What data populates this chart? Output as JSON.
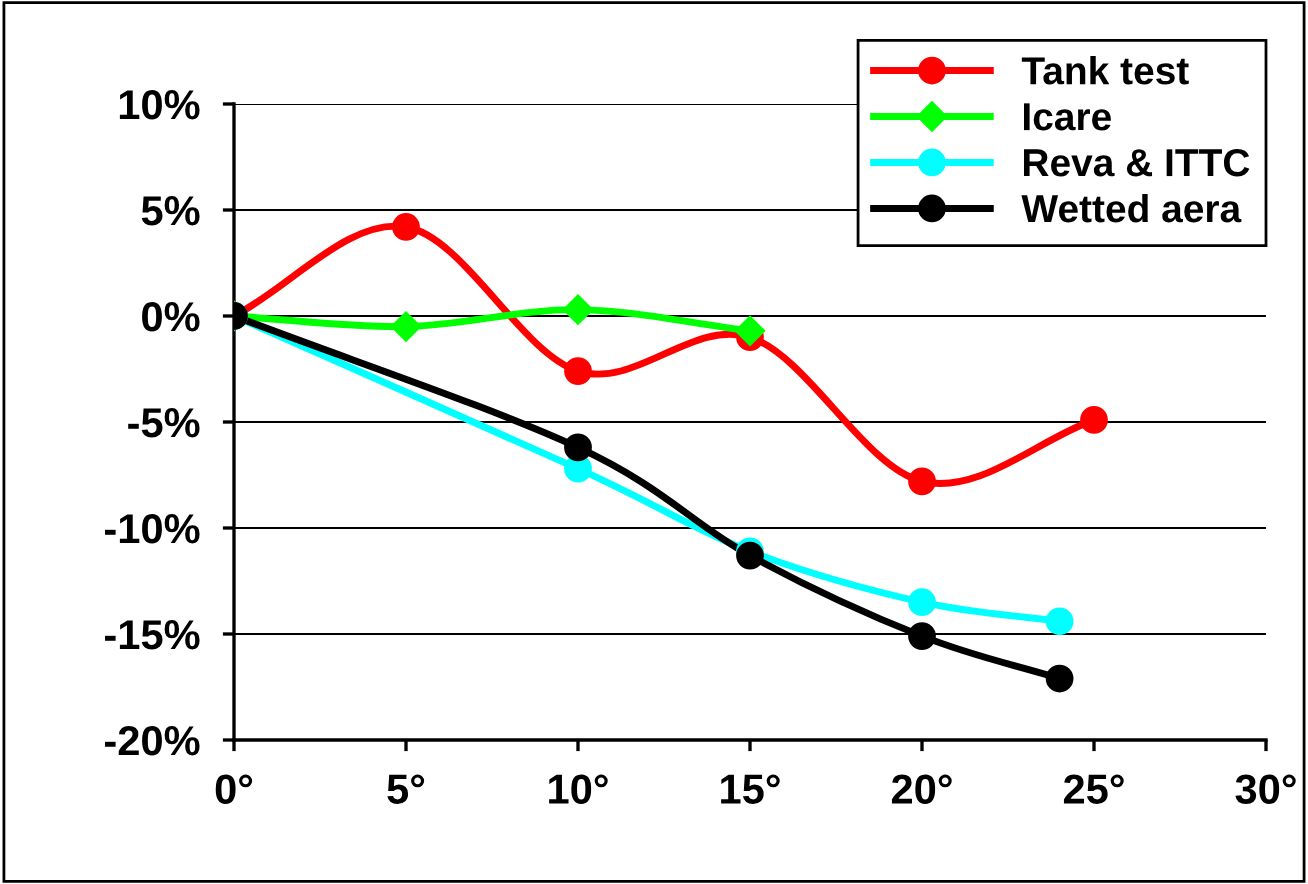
{
  "chart_data": {
    "type": "line",
    "series": [
      {
        "name": "Tank test",
        "color": "#ff0000",
        "marker": "circle",
        "x": [
          0,
          5,
          10,
          15,
          20,
          25
        ],
        "values": [
          0,
          4.2,
          -2.6,
          -1.0,
          -7.8,
          -4.9
        ]
      },
      {
        "name": "Icare",
        "color": "#00ff00",
        "marker": "diamond",
        "x": [
          0,
          5,
          10,
          15
        ],
        "values": [
          0,
          -0.5,
          0.3,
          -0.7
        ]
      },
      {
        "name": "Reva & ITTC",
        "color": "#00ffff",
        "marker": "circle",
        "x": [
          0,
          10,
          15,
          20,
          24
        ],
        "values": [
          0,
          -7.2,
          -11.1,
          -13.5,
          -14.4
        ]
      },
      {
        "name": "Wetted aera",
        "color": "#000000",
        "marker": "circle",
        "x": [
          0,
          10,
          15,
          20,
          24
        ],
        "values": [
          0,
          -6.2,
          -11.3,
          -15.1,
          -17.1
        ]
      }
    ],
    "xlim": [
      0,
      30
    ],
    "xticks": [
      {
        "value": 0,
        "label": "0°"
      },
      {
        "value": 5,
        "label": "5°"
      },
      {
        "value": 10,
        "label": "10°"
      },
      {
        "value": 15,
        "label": "15°"
      },
      {
        "value": 20,
        "label": "20°"
      },
      {
        "value": 25,
        "label": "25°"
      },
      {
        "value": 30,
        "label": "30°"
      }
    ],
    "ylim": [
      -20,
      10
    ],
    "yticks": [
      {
        "value": -20,
        "label": "-20%"
      },
      {
        "value": -15,
        "label": "-15%"
      },
      {
        "value": -10,
        "label": "-10%"
      },
      {
        "value": -5,
        "label": "-5%"
      },
      {
        "value": 0,
        "label": "0%"
      },
      {
        "value": 5,
        "label": "5%"
      },
      {
        "value": 10,
        "label": "10%"
      }
    ],
    "grid": "y",
    "legend": "top right",
    "line_style": "solid"
  }
}
